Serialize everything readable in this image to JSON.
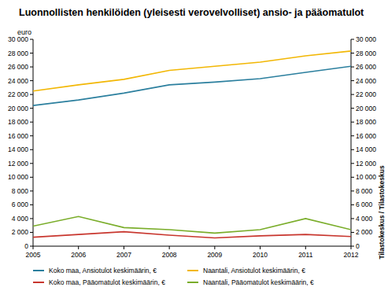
{
  "chart_data": {
    "type": "line",
    "title": "Luonnollisten henkilöiden (yleisesti verovelvolliset) ansio- ja pääomatulot",
    "y_label": "euro",
    "source": "Tilastokeskus / Tilastokeskus",
    "x": [
      2005,
      2006,
      2007,
      2008,
      2009,
      2010,
      2011,
      2012
    ],
    "xlim": [
      2005,
      2012
    ],
    "xticks": [
      2005,
      2006,
      2007,
      2008,
      2009,
      2010,
      2011,
      2012
    ],
    "ylim": [
      0,
      30000
    ],
    "yticks": [
      0,
      {
        "value": 2000,
        "label": "2 000"
      },
      {
        "value": 4000,
        "label": "4 000"
      },
      {
        "value": 6000,
        "label": "6 000"
      },
      {
        "value": 8000,
        "label": "8 000"
      },
      {
        "value": 10000,
        "label": "10 000"
      },
      {
        "value": 12000,
        "label": "12 000"
      },
      {
        "value": 14000,
        "label": "14 000"
      },
      {
        "value": 16000,
        "label": "16 000"
      },
      {
        "value": 18000,
        "label": "18 000"
      },
      {
        "value": 20000,
        "label": "20 000"
      },
      {
        "value": 22000,
        "label": "22 000"
      },
      {
        "value": 24000,
        "label": "24 000"
      },
      {
        "value": 26000,
        "label": "26 000"
      },
      {
        "value": 28000,
        "label": "28 000"
      },
      {
        "value": 30000,
        "label": "30 000"
      }
    ],
    "y2lim": [
      0,
      30000
    ],
    "y2ticks": [
      0,
      {
        "value": 2000,
        "label": "2 000"
      },
      {
        "value": 4000,
        "label": "4 000"
      },
      {
        "value": 6000,
        "label": "6 000"
      },
      {
        "value": 8000,
        "label": "8 000"
      },
      {
        "value": 10000,
        "label": "10 000"
      },
      {
        "value": 12000,
        "label": "12 000"
      },
      {
        "value": 14000,
        "label": "14 000"
      },
      {
        "value": 16000,
        "label": "16 000"
      },
      {
        "value": 18000,
        "label": "18 000"
      },
      {
        "value": 20000,
        "label": "20 000"
      },
      {
        "value": 22000,
        "label": "22 000"
      },
      {
        "value": 24000,
        "label": "24 000"
      },
      {
        "value": 26000,
        "label": "26 000"
      },
      {
        "value": 28000,
        "label": "28 000"
      },
      {
        "value": 30000,
        "label": "30 000"
      }
    ],
    "grid": false,
    "legend": "bottom",
    "series": [
      {
        "name": "Koko maa, Ansiotulot keskimäärin, €",
        "color": "#2b7f9e",
        "values": [
          20400,
          21200,
          22200,
          23400,
          23800,
          24300,
          25200,
          26100
        ]
      },
      {
        "name": "Naantali, Ansiotulot keskimäärin, €",
        "color": "#f2b705",
        "values": [
          22500,
          23400,
          24200,
          25500,
          26100,
          26700,
          27600,
          28300
        ]
      },
      {
        "name": "Koko maa, Pääomatulot keskimäärin, €",
        "color": "#c8362e",
        "values": [
          1300,
          1700,
          2100,
          1600,
          1200,
          1500,
          1700,
          1400
        ]
      },
      {
        "name": "Naantali, Pääomatulot keskimäärin, €",
        "color": "#7aad2a",
        "values": [
          2900,
          4300,
          2700,
          2400,
          1900,
          2400,
          4000,
          2400
        ]
      }
    ]
  }
}
